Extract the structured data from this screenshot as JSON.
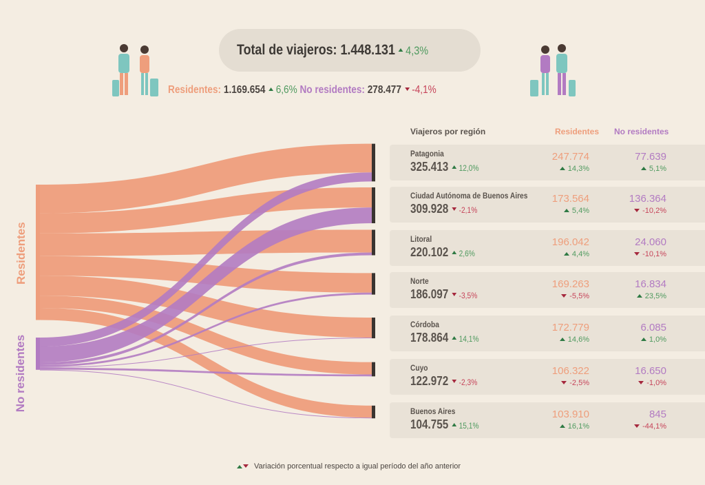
{
  "header": {
    "total_label": "Total de viajeros:",
    "total_value": "1.448.131",
    "total_change": "4,3%",
    "res_label": "Residentes:",
    "res_value": "1.169.654",
    "res_change": "6,6%",
    "nonres_label": "No residentes:",
    "nonres_value": "278.477",
    "nonres_change": "-4,1%"
  },
  "side_labels": {
    "res": "Residentes",
    "nonres": "No residentes"
  },
  "table_header": {
    "region": "Viajeros por región",
    "res": "Residentes",
    "nonres": "No residentes"
  },
  "colors": {
    "res": "#ee9e7c",
    "nonres": "#b27bc2",
    "up": "#4f9a5f",
    "down": "#c6445a",
    "bg": "#f4ede2"
  },
  "chart_data": {
    "type": "sankey",
    "sources": [
      "Residentes",
      "No residentes"
    ],
    "regions": [
      {
        "name": "Patagonia",
        "total": "325.413",
        "total_change": "12,0%",
        "res": "247.774",
        "res_change": "14,3%",
        "nonres": "77.639",
        "nonres_change": "5,1%",
        "res_n": 247774,
        "nonres_n": 77639
      },
      {
        "name": "Ciudad Autónoma de Buenos Aires",
        "total": "309.928",
        "total_change": "-2,1%",
        "res": "173.564",
        "res_change": "5,4%",
        "nonres": "136.364",
        "nonres_change": "-10,2%",
        "res_n": 173564,
        "nonres_n": 136364
      },
      {
        "name": "Litoral",
        "total": "220.102",
        "total_change": "2,6%",
        "res": "196.042",
        "res_change": "4,4%",
        "nonres": "24.060",
        "nonres_change": "-10,1%",
        "res_n": 196042,
        "nonres_n": 24060
      },
      {
        "name": "Norte",
        "total": "186.097",
        "total_change": "-3,5%",
        "res": "169.263",
        "res_change": "-5,5%",
        "nonres": "16.834",
        "nonres_change": "23,5%",
        "res_n": 169263,
        "nonres_n": 16834
      },
      {
        "name": "Córdoba",
        "total": "178.864",
        "total_change": "14,1%",
        "res": "172.779",
        "res_change": "14,6%",
        "nonres": "6.085",
        "nonres_change": "1,0%",
        "res_n": 172779,
        "nonres_n": 6085
      },
      {
        "name": "Cuyo",
        "total": "122.972",
        "total_change": "-2,3%",
        "res": "106.322",
        "res_change": "-2,5%",
        "nonres": "16.650",
        "nonres_change": "-1,0%",
        "res_n": 106322,
        "nonres_n": 16650
      },
      {
        "name": "Buenos Aires",
        "total": "104.755",
        "total_change": "15,1%",
        "res": "103.910",
        "res_change": "16,1%",
        "nonres": "845",
        "nonres_change": "-44,1%",
        "res_n": 103910,
        "nonres_n": 845
      }
    ]
  },
  "footer": "Variación porcentual respecto a igual período del año anterior"
}
